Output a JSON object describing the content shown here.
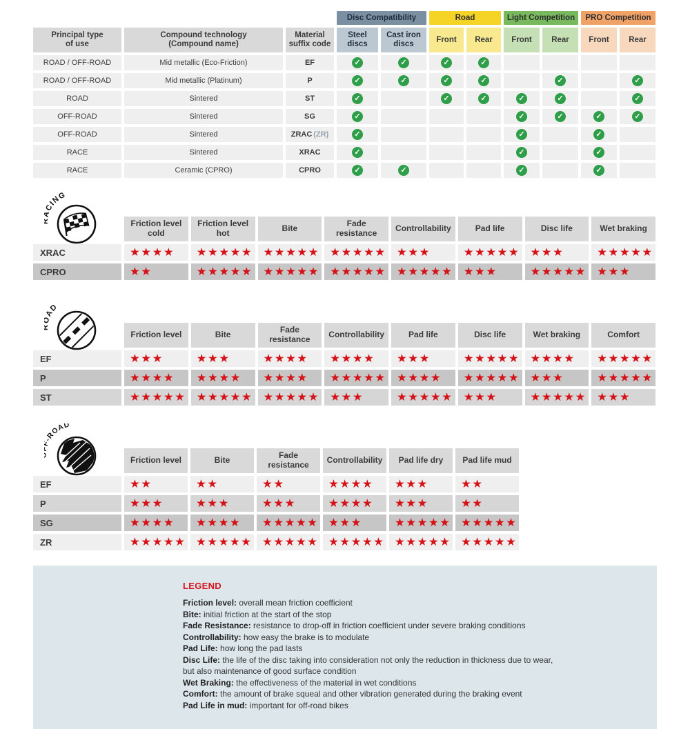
{
  "colors": {
    "star_red": "#d41217",
    "check_green": "#2f9e48",
    "header_gray": "#d9d9d9",
    "row_light": "#efefef",
    "legend_bg": "#dde7eb",
    "legend_title_red": "#d6121a",
    "disc_band": "#7b8fa3",
    "disc_band_text": "#1e2d3c",
    "disc_sub": "#bcc8d1",
    "road_band": "#f5d327",
    "road_sub": "#f8e98e",
    "light_band": "#77b95c",
    "light_sub": "#c5e0b4",
    "pro_band": "#f1a267",
    "pro_sub": "#f8d8bd"
  },
  "compat": {
    "col_headers": [
      "Principal type\nof use",
      "Compound technology\n(Compound name)",
      "Material\nsuffix code"
    ],
    "bands": [
      {
        "label": "Disc Compatibility",
        "bg": "disc_band",
        "sub_bg": "disc_sub",
        "subs": [
          "Steel discs",
          "Cast iron discs"
        ]
      },
      {
        "label": "Road",
        "bg": "road_band",
        "sub_bg": "road_sub",
        "subs": [
          "Front",
          "Rear"
        ]
      },
      {
        "label": "Light Competition",
        "bg": "light_band",
        "sub_bg": "light_sub",
        "subs": [
          "Front",
          "Rear"
        ]
      },
      {
        "label": "PRO Competition",
        "bg": "pro_band",
        "sub_bg": "pro_sub",
        "subs": [
          "Front",
          "Rear"
        ]
      }
    ],
    "rows": [
      {
        "use": "ROAD / OFF-ROAD",
        "tech": "Mid metallic (Eco-Friction)",
        "code": "EF",
        "code_note": "",
        "checks": [
          1,
          1,
          1,
          1,
          0,
          0,
          0,
          0
        ]
      },
      {
        "use": "ROAD / OFF-ROAD",
        "tech": "Mid metallic (Platinum)",
        "code": "P",
        "code_note": "",
        "checks": [
          1,
          1,
          1,
          1,
          0,
          1,
          0,
          1
        ]
      },
      {
        "use": "ROAD",
        "tech": "Sintered",
        "code": "ST",
        "code_note": "",
        "checks": [
          1,
          0,
          1,
          1,
          1,
          1,
          0,
          1
        ]
      },
      {
        "use": "OFF-ROAD",
        "tech": "Sintered",
        "code": "SG",
        "code_note": "",
        "checks": [
          1,
          0,
          0,
          0,
          1,
          1,
          1,
          1
        ]
      },
      {
        "use": "OFF-ROAD",
        "tech": "Sintered",
        "code": "ZRAC",
        "code_note": "(ZR)",
        "checks": [
          1,
          0,
          0,
          0,
          1,
          0,
          1,
          0
        ]
      },
      {
        "use": "RACE",
        "tech": "Sintered",
        "code": "XRAC",
        "code_note": "",
        "checks": [
          1,
          0,
          0,
          0,
          1,
          0,
          1,
          0
        ]
      },
      {
        "use": "RACE",
        "tech": "Ceramic (CPRO)",
        "code": "CPRO",
        "code_note": "",
        "checks": [
          1,
          1,
          0,
          0,
          1,
          0,
          1,
          0
        ]
      }
    ]
  },
  "sections": [
    {
      "id": "racing",
      "title": "RACING",
      "headers": [
        "Friction level cold",
        "Friction level hot",
        "Bite",
        "Fade resistance",
        "Controllability",
        "Pad life",
        "Disc life",
        "Wet braking"
      ],
      "rows": [
        {
          "code": "XRAC",
          "shade": "light",
          "ratings": [
            4,
            5,
            5,
            5,
            3,
            5,
            3,
            5
          ]
        },
        {
          "code": "CPRO",
          "shade": "dark",
          "ratings": [
            2,
            5,
            5,
            5,
            5,
            3,
            5,
            3
          ]
        }
      ]
    },
    {
      "id": "road",
      "title": "ROAD",
      "headers": [
        "Friction level",
        "Bite",
        "Fade resistance",
        "Controllability",
        "Pad life",
        "Disc life",
        "Wet braking",
        "Comfort"
      ],
      "rows": [
        {
          "code": "EF",
          "shade": "light",
          "ratings": [
            3,
            3,
            4,
            4,
            3,
            5,
            4,
            5
          ]
        },
        {
          "code": "P",
          "shade": "dark",
          "ratings": [
            4,
            4,
            4,
            5,
            4,
            5,
            3,
            5
          ]
        },
        {
          "code": "ST",
          "shade": "medium",
          "ratings": [
            5,
            5,
            5,
            3,
            5,
            3,
            5,
            3
          ]
        }
      ]
    },
    {
      "id": "offroad",
      "title": "OFF-ROAD",
      "headers": [
        "Friction level",
        "Bite",
        "Fade resistance",
        "Controllability",
        "Pad life dry",
        "Pad life mud"
      ],
      "rows": [
        {
          "code": "EF",
          "shade": "light",
          "ratings": [
            2,
            2,
            2,
            4,
            3,
            2
          ]
        },
        {
          "code": "P",
          "shade": "medium",
          "ratings": [
            3,
            3,
            3,
            4,
            3,
            2
          ]
        },
        {
          "code": "SG",
          "shade": "dark",
          "ratings": [
            4,
            4,
            5,
            3,
            5,
            5
          ]
        },
        {
          "code": "ZR",
          "shade": "light",
          "ratings": [
            5,
            5,
            5,
            5,
            5,
            5
          ]
        }
      ]
    }
  ],
  "legend": {
    "title": "LEGEND",
    "items": [
      {
        "term": "Friction level",
        "desc": "overall mean friction coefficient"
      },
      {
        "term": "Bite",
        "desc": "initial friction at the start of the stop"
      },
      {
        "term": "Fade Resistance",
        "desc": "resistance to drop-off in friction coefficient under severe braking conditions"
      },
      {
        "term": "Controllability",
        "desc": "how easy the brake is to modulate"
      },
      {
        "term": "Pad Life",
        "desc": "how long the pad lasts"
      },
      {
        "term": "Disc Life",
        "desc": "the life of the disc taking into consideration not only the reduction in thickness due to wear,"
      },
      {
        "term": "",
        "desc": "but also maintenance of good surface condition"
      },
      {
        "term": "Wet Braking",
        "desc": "the effectiveness of the material in wet conditions"
      },
      {
        "term": "Comfort",
        "desc": "the amount of brake squeal and other vibration generated during the braking event"
      },
      {
        "term": "Pad Life in mud",
        "desc": "important for off-road bikes"
      }
    ]
  },
  "star_glyph": "★",
  "check_glyph": "✓"
}
